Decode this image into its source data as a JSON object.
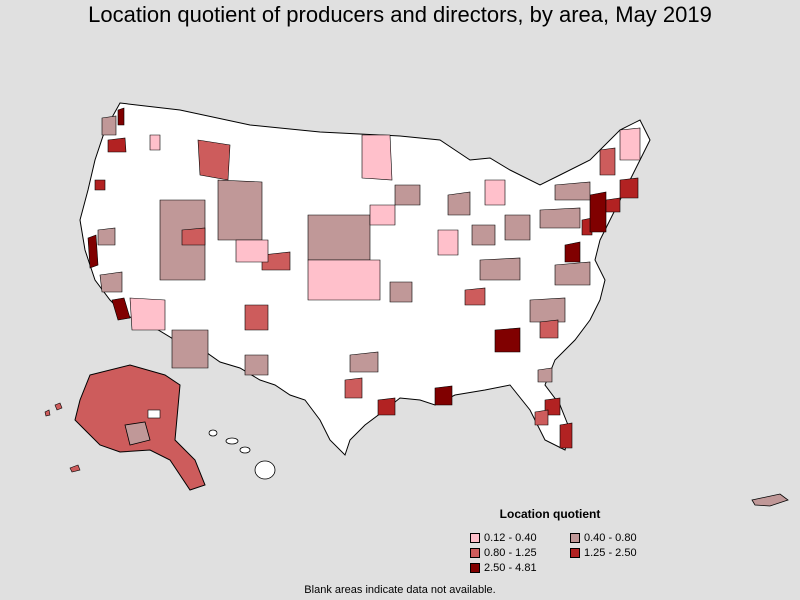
{
  "title": "Location quotient of producers and directors, by area, May 2019",
  "legend": {
    "title": "Location quotient",
    "items": [
      {
        "label": "0.12 - 0.40",
        "color": "#ffc0cb"
      },
      {
        "label": "0.40 - 0.80",
        "color": "#c09898"
      },
      {
        "label": "0.80 - 1.25",
        "color": "#cd5c5c"
      },
      {
        "label": "1.25 - 2.50",
        "color": "#b22222"
      },
      {
        "label": "2.50 - 4.81",
        "color": "#800000"
      }
    ]
  },
  "note": "Blank areas indicate data not available.",
  "colors": {
    "background": "#e0e0e0",
    "nodata": "#ffffff",
    "border": "#000000"
  }
}
